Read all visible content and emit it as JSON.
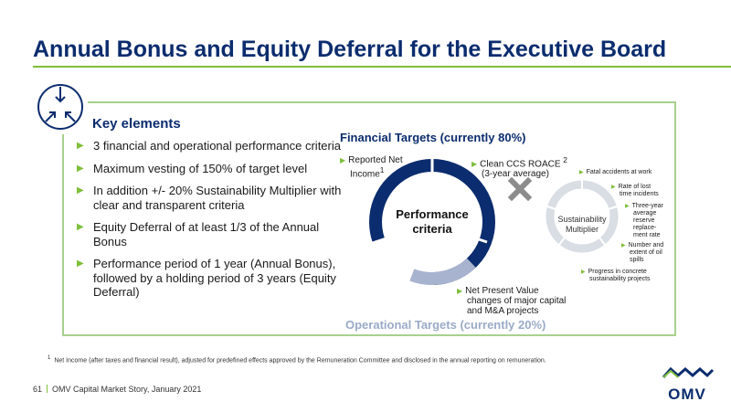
{
  "page": {
    "title": "Annual Bonus and Equity Deferral for the Executive Board"
  },
  "key": {
    "heading": "Key elements",
    "bullets": [
      "3 financial and operational performance criteria",
      "Maximum vesting of 150% of target level",
      "In addition +/- 20% Sustainability Multiplier with clear and transparent criteria",
      "Equity Deferral of at least 1/3 of the Annual Bonus",
      "Performance period of 1 year (Annual Bonus), followed by a holding period of 3 years (Equity Deferral)"
    ]
  },
  "diagram": {
    "financial_title": "Financial Targets (currently 80%)",
    "operational_title": "Operational Targets (currently 20%)",
    "center_label": "Performance criteria",
    "reported_net_income": "Reported Net Income",
    "reported_net_income_sup": "1",
    "clean_ccs": "Clean CCS ROACE",
    "clean_ccs_sup": "2",
    "clean_ccs_sub": "(3-year average)",
    "npv": "Net Present Value changes of major capital and M&A projects",
    "sustainability_label": "Sustainability Multiplier",
    "sustainability_items": [
      "Fatal accidents at work",
      "Rate of lost time incidents",
      "Three-year average reserve replace-ment rate",
      "Number and extent of oil spills",
      "Progress in concrete sustainability projects"
    ]
  },
  "footnote": {
    "marker": "1",
    "text": "Net Income (after taxes and financial result), adjusted for predefined effects approved by the Remuneration Committee and disclosed in the annual reporting on remuneration."
  },
  "footer": {
    "page_number": "61",
    "text": "OMV Capital Market Story, January 2021"
  },
  "logo": {
    "word": "OMV"
  },
  "colors": {
    "navy": "#0b2c6e",
    "green": "#7fbf3b",
    "light_blue": "#9aabc8",
    "light_grey": "#d9dde4"
  },
  "icons": {
    "hub": "converging-arrows-icon",
    "bullet": "triangle-right-icon",
    "multiply": "multiply-icon"
  }
}
